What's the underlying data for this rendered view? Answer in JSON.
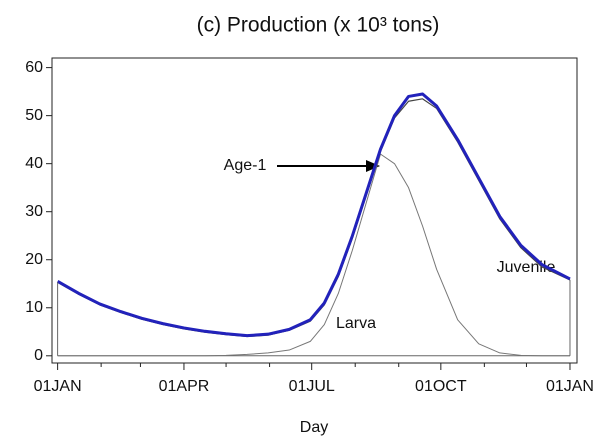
{
  "chart_data": {
    "type": "line",
    "title": "(c) Production (x 10³ tons)",
    "xlabel": "Day",
    "x": [
      0,
      15,
      30,
      45,
      60,
      75,
      90,
      105,
      120,
      135,
      150,
      165,
      180,
      190,
      200,
      210,
      220,
      230,
      240,
      250,
      260,
      270,
      285,
      300,
      315,
      330,
      345,
      365
    ],
    "series": [
      {
        "name": "Age-1",
        "color": "#2222bb",
        "values": [
          15.5,
          13,
          10.8,
          9.2,
          7.8,
          6.7,
          5.8,
          5.1,
          4.6,
          4.2,
          4.5,
          5.5,
          7.5,
          11,
          17,
          25,
          34,
          43,
          50,
          54,
          54.5,
          52,
          45,
          37,
          29,
          23,
          19,
          16
        ]
      },
      {
        "name": "Juvenile",
        "color": "#444444",
        "values": [
          15.3,
          12.8,
          10.6,
          9.0,
          7.6,
          6.5,
          5.6,
          4.9,
          4.4,
          4.0,
          4.3,
          5.3,
          7.2,
          10.6,
          16.5,
          24.5,
          33.5,
          42.5,
          49.5,
          53,
          53.5,
          51.5,
          44.5,
          36.5,
          28.5,
          22.5,
          18.5,
          15.8
        ]
      },
      {
        "name": "Larva",
        "color": "#777777",
        "values": [
          0,
          0,
          0,
          0,
          0,
          0,
          0,
          0,
          0.1,
          0.3,
          0.6,
          1.2,
          3,
          6.5,
          13,
          22,
          32,
          42,
          40,
          35,
          27,
          18,
          7.5,
          2.5,
          0.6,
          0.1,
          0,
          0
        ]
      }
    ],
    "xlim": [
      -4,
      370
    ],
    "xticks": [
      {
        "value": 0,
        "label": "01JAN"
      },
      {
        "value": 90,
        "label": "01APR"
      },
      {
        "value": 181,
        "label": "01JUL"
      },
      {
        "value": 273,
        "label": "01OCT"
      },
      {
        "value": 365,
        "label": "01JAN"
      }
    ],
    "xminorticks": [
      31,
      59,
      120,
      151,
      212,
      243,
      304,
      334
    ],
    "ylim": [
      -1.5,
      62
    ],
    "yticks": [
      0,
      10,
      20,
      30,
      40,
      50,
      60
    ]
  }
}
